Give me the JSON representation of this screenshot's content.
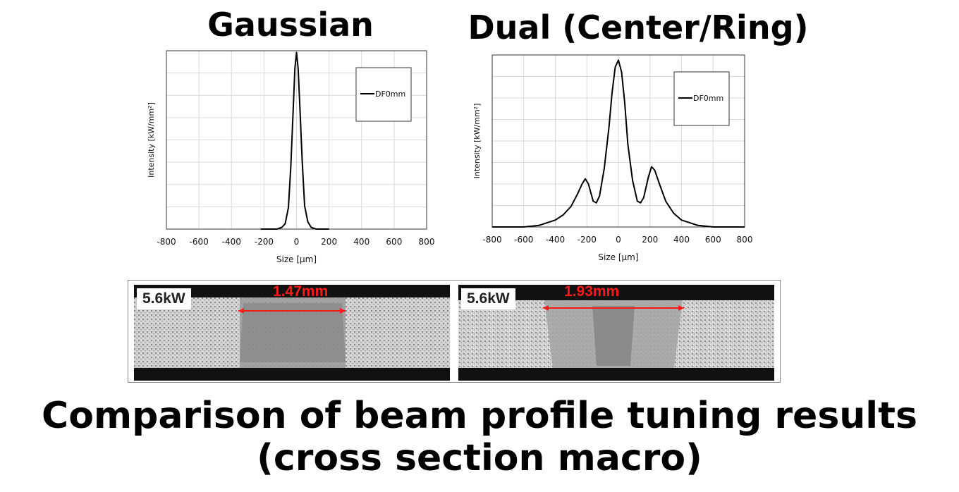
{
  "titles": {
    "left": "Gaussian",
    "right": "Dual (Center/Ring)"
  },
  "chart_data": [
    {
      "type": "line",
      "title": "Gaussian",
      "xlabel": "Size [μm]",
      "ylabel": "Intensity [kW/mm²]",
      "xlim": [
        -800,
        800
      ],
      "xticks": [
        -800,
        -600,
        -400,
        -200,
        0,
        200,
        400,
        600,
        800
      ],
      "ylim": [
        0,
        1.0
      ],
      "grid": true,
      "legend": "top-right",
      "series": [
        {
          "name": "DF0mm",
          "x": [
            -220,
            -120,
            -90,
            -70,
            -50,
            -35,
            -20,
            -10,
            0,
            10,
            20,
            35,
            50,
            70,
            90,
            120,
            200
          ],
          "y": [
            0,
            0.0,
            0.01,
            0.03,
            0.12,
            0.35,
            0.68,
            0.9,
            0.99,
            0.9,
            0.7,
            0.38,
            0.13,
            0.04,
            0.01,
            0.0,
            0
          ]
        }
      ]
    },
    {
      "type": "line",
      "title": "Dual (Center/Ring)",
      "xlabel": "Size [μm]",
      "ylabel": "Intensity [kW/mm²]",
      "xlim": [
        -800,
        800
      ],
      "xticks": [
        -800,
        -600,
        -400,
        -200,
        0,
        200,
        400,
        600,
        800
      ],
      "ylim": [
        0,
        1.0
      ],
      "grid": true,
      "legend": "top-right",
      "series": [
        {
          "name": "DF0mm",
          "x": [
            -800,
            -600,
            -500,
            -400,
            -350,
            -300,
            -260,
            -230,
            -210,
            -190,
            -160,
            -140,
            -120,
            -90,
            -60,
            -40,
            -20,
            0,
            20,
            40,
            60,
            90,
            120,
            140,
            160,
            190,
            210,
            230,
            260,
            300,
            350,
            400,
            500,
            600,
            800
          ],
          "y": [
            0,
            0.0,
            0.01,
            0.04,
            0.07,
            0.12,
            0.19,
            0.25,
            0.28,
            0.25,
            0.15,
            0.14,
            0.18,
            0.34,
            0.58,
            0.78,
            0.93,
            0.97,
            0.9,
            0.72,
            0.48,
            0.27,
            0.15,
            0.14,
            0.17,
            0.29,
            0.35,
            0.33,
            0.25,
            0.15,
            0.08,
            0.04,
            0.01,
            0.0,
            0
          ]
        }
      ]
    }
  ],
  "macro": {
    "left": {
      "power": "5.6kW",
      "width": "1.47mm"
    },
    "right": {
      "power": "5.6kW",
      "width": "1.93mm"
    }
  },
  "caption": {
    "line1": "Comparison of beam profile tuning results",
    "line2": "(cross section macro)"
  },
  "colors": {
    "line": "#000000",
    "grid": "#d9d9d9",
    "annotation": "#ff1a1a"
  }
}
